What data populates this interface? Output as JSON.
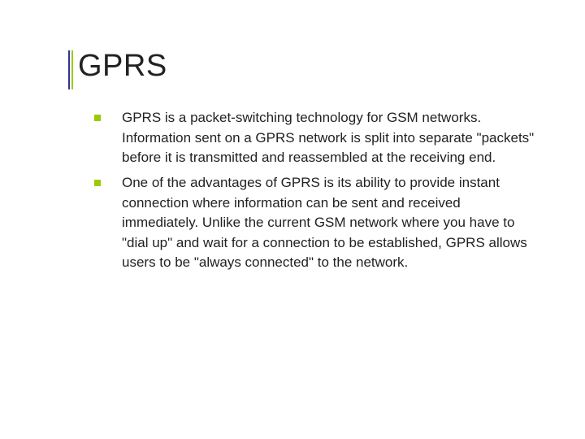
{
  "slide": {
    "title": "GPRS",
    "title_color": "#222222",
    "title_fontsize": 38,
    "accent_left_color": "#333399",
    "accent_right_color": "#99cc00",
    "background_color": "#ffffff",
    "bullets": [
      {
        "text": "GPRS is a packet-switching technology for GSM networks. Information sent on a GPRS network is split into separate \"packets\" before it is transmitted and reassembled at the receiving end."
      },
      {
        "text": "One of the advantages of GPRS is its ability to provide instant connection where information can be sent and received immediately. Unlike the current GSM network where you have to \"dial up\" and wait for a connection to be established, GPRS allows users to be \"always connected\" to the network."
      }
    ],
    "bullet_marker_color": "#99cc00",
    "body_fontsize": 17,
    "body_color": "#222222"
  }
}
